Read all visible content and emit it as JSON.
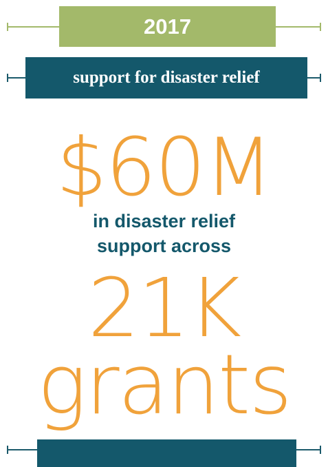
{
  "header": {
    "year": "2017",
    "topic": "support for disaster relief"
  },
  "stats": {
    "amount": "$60M",
    "description_line1": "in disaster relief",
    "description_line2": "support across",
    "count": "21K",
    "unit": "grants"
  },
  "colors": {
    "green": "#a3b96a",
    "teal": "#14586b",
    "orange": "#f0a23b"
  }
}
